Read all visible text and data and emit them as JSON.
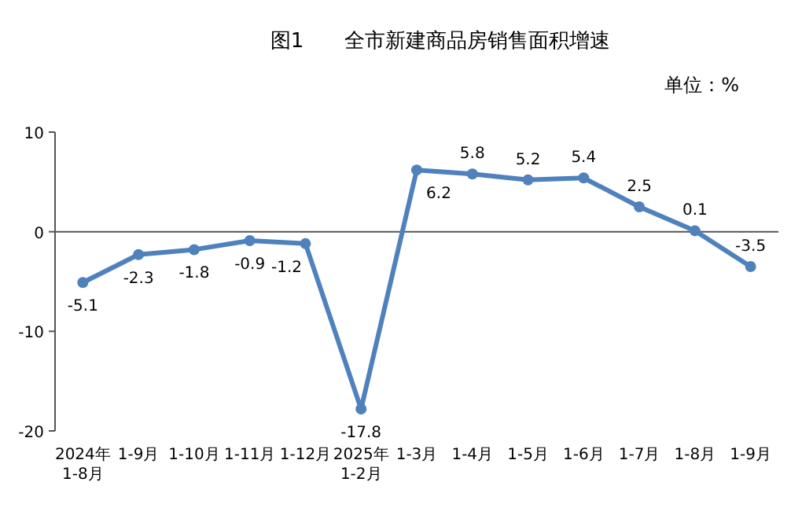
{
  "chart_data": {
    "type": "line",
    "title": "图1　　全市新建商品房销售面积增速",
    "ylabel": "单位：%",
    "categories": [
      "2024年\n1-8月",
      "1-9月",
      "1-10月",
      "1-11月",
      "1-12月",
      "2025年\n1-2月",
      "1-3月",
      "1-4月",
      "1-5月",
      "1-6月",
      "1-7月",
      "1-8月",
      "1-9月"
    ],
    "series": [
      {
        "color": "#4f81bd",
        "values": [
          -5.1,
          -2.3,
          -1.8,
          -0.9,
          -1.2,
          -17.8,
          6.2,
          5.8,
          5.2,
          5.4,
          2.5,
          0.1,
          -3.5
        ]
      }
    ],
    "ylim": [
      -20,
      10
    ],
    "yticks": [
      -20,
      -10,
      0,
      10
    ],
    "data_labels": true,
    "marker": "circle",
    "line_style": "solid"
  }
}
